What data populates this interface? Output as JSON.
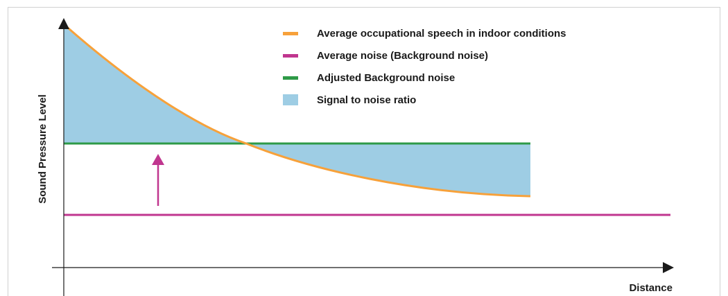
{
  "axes": {
    "y_label": "Sound Pressure Level",
    "x_label": "Distance"
  },
  "legend": [
    {
      "label": "Average occupational speech in indoor conditions"
    },
    {
      "label": "Average noise (Background noise)"
    },
    {
      "label": "Adjusted Background noise"
    },
    {
      "label": "Signal to noise ratio"
    }
  ]
}
